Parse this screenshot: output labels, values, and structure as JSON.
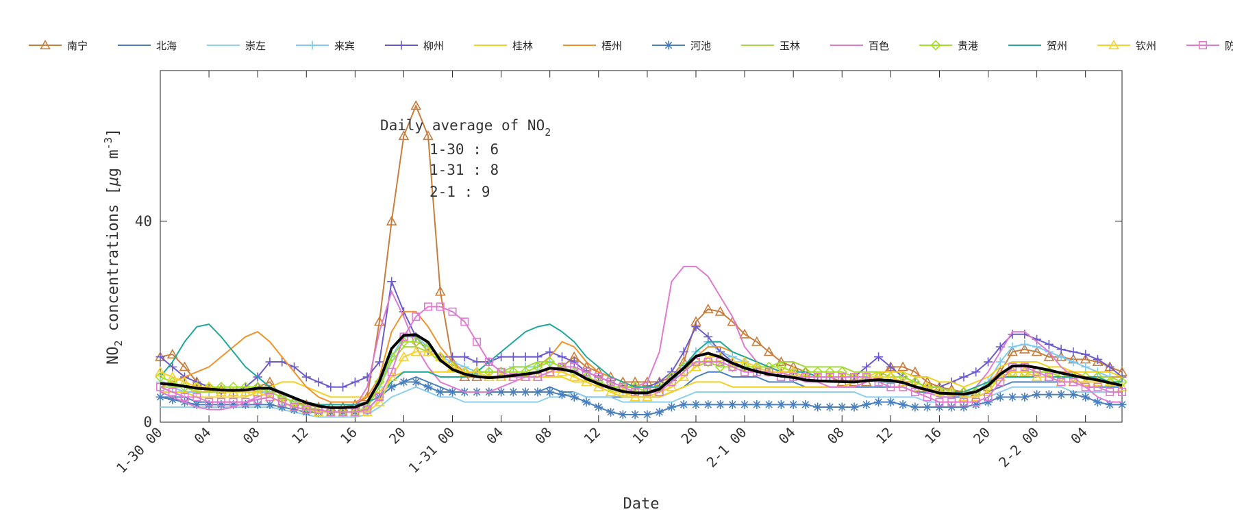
{
  "chart_data": {
    "type": "line",
    "xlabel": "Date",
    "ylabel_main": "NO",
    "ylabel_sub": "2",
    "ylabel_rest": " concentrations [",
    "ylabel_mu": "μ",
    "ylabel_unit": "g m",
    "ylabel_sup": "-3",
    "ylabel_end": "]",
    "ylim": [
      0,
      70
    ],
    "yticks": [
      0,
      40
    ],
    "ytick_labels": [
      "0",
      "40"
    ],
    "x_range_hours": [
      0,
      79
    ],
    "xticks_hours": [
      0,
      4,
      8,
      12,
      16,
      20,
      24,
      28,
      32,
      36,
      40,
      44,
      48,
      52,
      56,
      60,
      64,
      68,
      72,
      76
    ],
    "xtick_labels": [
      "1-30 00",
      "04",
      "08",
      "12",
      "16",
      "20",
      "1-31 00",
      "04",
      "08",
      "12",
      "16",
      "20",
      "2-1 00",
      "04",
      "08",
      "12",
      "16",
      "20",
      "2-2 00",
      "04"
    ],
    "annotation": {
      "line1_main": "Daily average of NO",
      "line1_sub": "2",
      "line2": "1-30 : 6",
      "line3": "1-31 : 8",
      "line4": "2-1 : 9"
    },
    "average_series_color": "#000000",
    "series": [
      {
        "name": "南宁",
        "color": "#c87d3c",
        "marker": "triangle",
        "values": [
          13,
          13.5,
          11,
          8,
          7,
          6.5,
          6,
          6,
          7,
          8,
          5,
          4,
          3.5,
          3,
          3,
          3,
          3.5,
          5,
          20,
          40,
          57,
          63,
          57,
          26,
          12,
          9,
          9,
          9,
          9,
          9,
          9,
          9,
          10,
          11,
          13,
          11,
          10,
          9,
          8,
          8,
          8,
          8,
          9,
          12,
          20,
          22.5,
          22,
          20,
          17.5,
          16,
          14,
          12,
          11,
          10,
          9,
          9,
          8,
          8,
          8,
          9,
          11,
          11,
          10,
          8,
          7,
          6.5,
          6,
          6,
          7,
          10,
          14,
          14.5,
          14,
          13,
          13,
          12.5,
          12.5,
          12,
          11,
          10
        ]
      },
      {
        "name": "北海",
        "color": "#4a7fbf",
        "marker": "none",
        "values": [
          5,
          5,
          5,
          4,
          4,
          4,
          4,
          4,
          4.5,
          5,
          4,
          3,
          2.5,
          2,
          2,
          2,
          2,
          2.5,
          5,
          7,
          8,
          9,
          8,
          7,
          6,
          6,
          6,
          6,
          6,
          6,
          6,
          6,
          7,
          6,
          6,
          5,
          5,
          5,
          5,
          5,
          5,
          5,
          6,
          7,
          9,
          10,
          10,
          9,
          9,
          9,
          8,
          8,
          8,
          7,
          7,
          7,
          7,
          7,
          7,
          7,
          7,
          7,
          6,
          6,
          5,
          5,
          5,
          5,
          6,
          7,
          8,
          8,
          8,
          8,
          8,
          8,
          7,
          7,
          7,
          7
        ]
      },
      {
        "name": "崇左",
        "color": "#8fcfee",
        "marker": "none",
        "values": [
          3,
          3,
          3,
          3,
          3,
          3,
          3,
          3,
          3,
          3,
          2.5,
          2,
          1.5,
          1,
          1,
          1,
          1,
          1.5,
          3,
          5,
          6,
          7,
          6,
          5,
          5,
          4,
          4,
          4,
          4,
          4,
          4,
          4,
          5,
          5,
          6,
          5,
          5,
          5,
          4,
          4,
          4,
          4,
          4,
          5,
          6,
          6,
          6,
          6,
          6,
          6,
          6,
          6,
          6,
          6,
          6,
          6,
          6,
          6,
          5,
          5,
          5,
          5,
          5,
          4,
          4,
          4,
          4,
          4,
          5,
          6,
          7,
          7,
          7,
          7,
          7,
          6,
          6,
          6,
          6,
          6
        ]
      },
      {
        "name": "来宾",
        "color": "#7dc8f0",
        "marker": "plus",
        "values": [
          8,
          7,
          6,
          6,
          6,
          6,
          6,
          6,
          6,
          6,
          5,
          4,
          3,
          2.5,
          2,
          2,
          2,
          3,
          7,
          13,
          17,
          17,
          15,
          13,
          12,
          11,
          10,
          10,
          10,
          11,
          11,
          11,
          12,
          11,
          10,
          9,
          8,
          7,
          6,
          6,
          6,
          7,
          9,
          11,
          14,
          16,
          14,
          13,
          12,
          11,
          10,
          10,
          10,
          9,
          9,
          9,
          9,
          9,
          9,
          8,
          8,
          8,
          7,
          7,
          6,
          6,
          5,
          6,
          8,
          12,
          15,
          15.5,
          15,
          14,
          13,
          12,
          11,
          10,
          9,
          8
        ]
      },
      {
        "name": "柳州",
        "color": "#6a5acd",
        "marker": "plus",
        "values": [
          13,
          11,
          9,
          8,
          7,
          6,
          6,
          7,
          9,
          12,
          12,
          11,
          9,
          8,
          7,
          7,
          8,
          9,
          12,
          28,
          22,
          17,
          14,
          13,
          13,
          13,
          12,
          12,
          13,
          13,
          13,
          13,
          14,
          13,
          12,
          10,
          9,
          8,
          7,
          7,
          7,
          8,
          10,
          14,
          19,
          17,
          14,
          12,
          11,
          10,
          10,
          10,
          9,
          9,
          9,
          9,
          9,
          9,
          11,
          13,
          11,
          9,
          8,
          7,
          7,
          8,
          9,
          10,
          12,
          15,
          17.5,
          17.5,
          16.5,
          15.5,
          14.5,
          14,
          13.5,
          12.5,
          11,
          9
        ]
      },
      {
        "name": "桂林",
        "color": "#f2d020",
        "marker": "none",
        "values": [
          6,
          6,
          6,
          5,
          5,
          5,
          5,
          5,
          6,
          7,
          8,
          8,
          7,
          6,
          5,
          5,
          5,
          5,
          6,
          9,
          10,
          10,
          10,
          10,
          10,
          10,
          9,
          9,
          9,
          9,
          9,
          9,
          9,
          9,
          8,
          8,
          7,
          6,
          5,
          5,
          5,
          5,
          6,
          7,
          8,
          8,
          8,
          7,
          7,
          7,
          7,
          7,
          7,
          7,
          7,
          7,
          7,
          8,
          9,
          10,
          10,
          10,
          9,
          9,
          8,
          8,
          7,
          8,
          9,
          11,
          12,
          12,
          12,
          11,
          11,
          10,
          10,
          10,
          10,
          9
        ]
      },
      {
        "name": "梧州",
        "color": "#f0922b",
        "marker": "none",
        "values": [
          7,
          8,
          9,
          10,
          11,
          13,
          15,
          17,
          18,
          16,
          13,
          10,
          7,
          5,
          4,
          4,
          4,
          5,
          9,
          18,
          22,
          22,
          19,
          15,
          12,
          10,
          9,
          9,
          9,
          9,
          10,
          11,
          13,
          16,
          15,
          12,
          10,
          9,
          8,
          7,
          7,
          7,
          8,
          10,
          13,
          15,
          15,
          14,
          13,
          12,
          11,
          10,
          10,
          9,
          9,
          9,
          9,
          9,
          9,
          9,
          9,
          8,
          8,
          7,
          7,
          6,
          6,
          7,
          8,
          10,
          10,
          10,
          10,
          10,
          10,
          10,
          9,
          9,
          9,
          9
        ]
      },
      {
        "name": "河池",
        "color": "#4a7fbf",
        "marker": "star",
        "values": [
          5,
          4.5,
          4,
          3.5,
          3.5,
          3.5,
          3.5,
          3.5,
          3.5,
          3.5,
          3,
          2.5,
          2,
          2,
          2,
          2,
          2,
          2.5,
          5,
          7,
          8,
          8,
          7,
          6,
          6,
          6,
          6,
          6,
          6,
          6,
          6,
          6,
          6,
          5.5,
          5,
          4,
          3,
          2,
          1.5,
          1.5,
          1.5,
          2,
          3,
          3.5,
          3.5,
          3.5,
          3.5,
          3.5,
          3.5,
          3.5,
          3.5,
          3.5,
          3.5,
          3.5,
          3,
          3,
          3,
          3,
          3.5,
          4,
          4,
          3.5,
          3,
          3,
          3,
          3,
          3,
          3.5,
          4,
          5,
          5,
          5,
          5.5,
          5.5,
          5.5,
          5.5,
          5,
          4,
          3.5,
          3.5
        ]
      },
      {
        "name": "玉林",
        "color": "#a3d63a",
        "marker": "none",
        "values": [
          7,
          7,
          7,
          6,
          6,
          6,
          6,
          6,
          6,
          5,
          4,
          3,
          2.5,
          2,
          2,
          2,
          2,
          3,
          7,
          12,
          15,
          15,
          14,
          12,
          11,
          10,
          10,
          10,
          10,
          11,
          11,
          12,
          12,
          11,
          10,
          9,
          8,
          7,
          6,
          6,
          6,
          6,
          7,
          9,
          11,
          12,
          12,
          11,
          11,
          11,
          11,
          12,
          12,
          11,
          11,
          11,
          11,
          10,
          10,
          10,
          9,
          9,
          8,
          7,
          7,
          6,
          6,
          6,
          7,
          9,
          10,
          10,
          10,
          10,
          10,
          9,
          9,
          9,
          9,
          8
        ]
      },
      {
        "name": "百色",
        "color": "#e07ad0",
        "marker": "none",
        "values": [
          6,
          5,
          4,
          3,
          2.5,
          2.5,
          3,
          4,
          5,
          6,
          6,
          5,
          4,
          3,
          3,
          3,
          3,
          7,
          18,
          26,
          21,
          15,
          11,
          8,
          7,
          6,
          6,
          6,
          7,
          8,
          9,
          10,
          11,
          10,
          9,
          8,
          7,
          7,
          7,
          7,
          8,
          14,
          28,
          31,
          31,
          29,
          25,
          21,
          15,
          12,
          11,
          10,
          9,
          8,
          8,
          7,
          7,
          7,
          8,
          9,
          9,
          8,
          7,
          6,
          5,
          5,
          6,
          7,
          10,
          14,
          18,
          18,
          16,
          14,
          11,
          9,
          7,
          5,
          4,
          4
        ]
      },
      {
        "name": "贵港",
        "color": "#a0e020",
        "marker": "diamond",
        "values": [
          9,
          8,
          7,
          7,
          7,
          7,
          7,
          7,
          7,
          6,
          5,
          4,
          3,
          2.5,
          2,
          2,
          2,
          3,
          8,
          13,
          16,
          16,
          15,
          13,
          11,
          10,
          10,
          10,
          10,
          10,
          10,
          11,
          12,
          11,
          10,
          9,
          8,
          7,
          7,
          7,
          6,
          7,
          9,
          11,
          12,
          12,
          11,
          11,
          11,
          11,
          11,
          11,
          10,
          10,
          10,
          10,
          10,
          9,
          9,
          9,
          9,
          9,
          8,
          7,
          6,
          6,
          6,
          6,
          7,
          9,
          10,
          10,
          10,
          10,
          9,
          9,
          9,
          9,
          8,
          8
        ]
      },
      {
        "name": "贺州",
        "color": "#1fa89a",
        "marker": "none",
        "values": [
          9,
          12,
          16,
          19,
          19.5,
          17,
          14,
          11,
          9,
          7,
          6,
          5,
          4,
          3.5,
          3.5,
          3.5,
          3.5,
          4,
          5,
          8,
          10,
          10,
          10,
          9,
          9,
          9,
          10,
          12,
          14,
          16,
          18,
          19,
          19.5,
          18,
          16,
          13,
          11,
          9,
          8,
          7,
          7,
          7,
          8,
          11,
          14,
          16,
          16,
          14,
          13,
          12,
          11,
          10,
          10,
          10,
          9,
          9,
          9,
          9,
          9,
          8,
          8,
          8,
          7,
          7,
          6,
          6,
          6,
          7,
          8,
          9,
          9,
          9,
          9,
          9,
          9,
          9,
          9,
          9,
          8,
          8
        ]
      },
      {
        "name": "钦州",
        "color": "#f5d12a",
        "marker": "triangle",
        "values": [
          10,
          9,
          8,
          7,
          7,
          6,
          6,
          6,
          6,
          5,
          4,
          3,
          2.5,
          2,
          2,
          2,
          2,
          2,
          4,
          9,
          13,
          14,
          14,
          13,
          11,
          10,
          10,
          9,
          9,
          9,
          9,
          9,
          10,
          10,
          9,
          8,
          7,
          6,
          6,
          5,
          5,
          6,
          7,
          9,
          11,
          13,
          13,
          12,
          12,
          11,
          10,
          10,
          10,
          9,
          9,
          9,
          9,
          9,
          9,
          9,
          9,
          8,
          7,
          7,
          6,
          6,
          5,
          5,
          6,
          9,
          10,
          10,
          9,
          9,
          8,
          8,
          8,
          8,
          8,
          7
        ]
      },
      {
        "name": "防城港",
        "color": "#e07ad0",
        "marker": "square",
        "values": [
          7,
          6,
          5,
          5,
          4,
          4,
          4,
          4,
          4.5,
          5,
          4,
          3,
          2.5,
          2.5,
          2,
          2,
          2,
          2.5,
          5,
          10,
          17,
          21,
          23,
          23,
          22,
          20,
          16,
          12,
          10,
          9,
          9,
          9,
          10,
          11,
          11,
          10,
          9,
          8,
          7,
          6,
          6,
          6,
          8,
          10,
          12,
          12,
          12,
          11,
          10,
          10,
          10,
          9,
          9,
          9,
          9,
          9,
          9,
          9,
          9,
          8,
          7,
          7,
          6,
          5,
          4,
          4,
          4,
          4,
          5,
          8,
          11,
          11,
          10,
          9,
          8,
          8,
          7,
          7,
          6,
          6
        ]
      }
    ]
  }
}
